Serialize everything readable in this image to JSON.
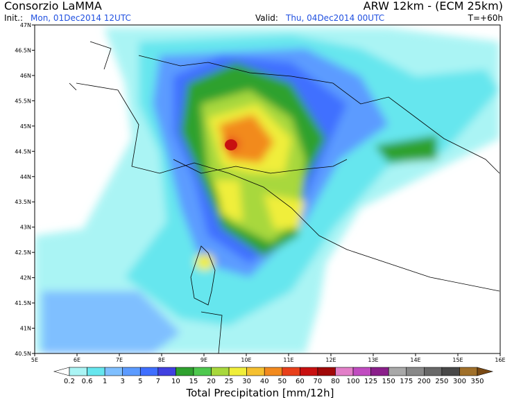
{
  "header": {
    "left_title": "Consorzio LaMMA",
    "right_title": "ARW 12km - (ECM 25km)",
    "init_label": "Init.:",
    "init_value": "Mon, 01Dec2014 12UTC",
    "valid_label": "Valid:",
    "valid_value": "Thu, 04Dec2014 00UTC",
    "lead_time": "T=+60h"
  },
  "map": {
    "lat_labels": [
      "47N",
      "46.5N",
      "46N",
      "45.5N",
      "45N",
      "44.5N",
      "44N",
      "43.5N",
      "43N",
      "42.5N",
      "42N",
      "41.5N",
      "41N",
      "40.5N"
    ],
    "lon_labels": [
      "5E",
      "6E",
      "7E",
      "8E",
      "9E",
      "10E",
      "11E",
      "12E",
      "13E",
      "14E",
      "15E",
      "16E"
    ]
  },
  "legend": {
    "title": "Total Precipitation [mm/12h]",
    "levels": [
      "0.2",
      "0.6",
      "1",
      "3",
      "5",
      "7",
      "10",
      "15",
      "20",
      "25",
      "30",
      "40",
      "50",
      "60",
      "70",
      "80",
      "100",
      "125",
      "150",
      "175",
      "200",
      "250",
      "300",
      "350"
    ],
    "colors": [
      "#ffffff",
      "#aaf4f4",
      "#66e6ee",
      "#7fbfff",
      "#5c9bff",
      "#3f6fff",
      "#4040e0",
      "#2fa12f",
      "#4ec84e",
      "#a8d83c",
      "#f0ee3a",
      "#f5c030",
      "#f28a1e",
      "#e8401a",
      "#c81010",
      "#a00808",
      "#e27fc8",
      "#c04cc0",
      "#8a1f8a",
      "#a8a8a8",
      "#888888",
      "#686868",
      "#484848",
      "#a0702a",
      "#7a4a14"
    ]
  }
}
